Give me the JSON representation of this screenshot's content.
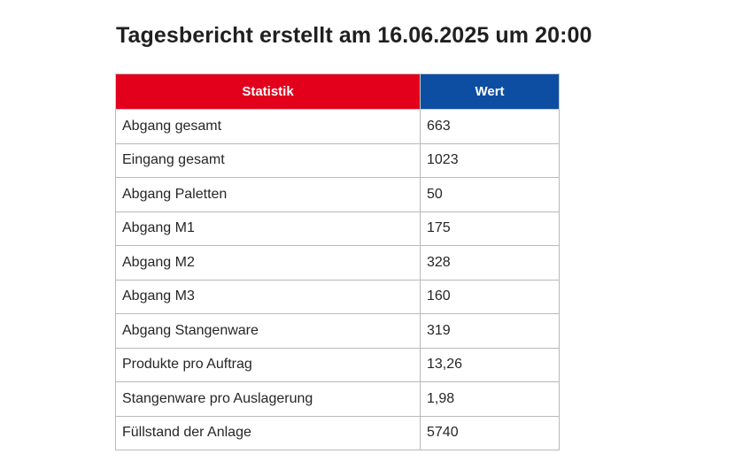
{
  "title": "Tagesbericht erstellt am 16.06.2025 um 20:00",
  "table": {
    "headers": [
      "Statistik",
      "Wert"
    ],
    "rows": [
      [
        "Abgang gesamt",
        "663"
      ],
      [
        "Eingang gesamt",
        "1023"
      ],
      [
        "Abgang Paletten",
        "50"
      ],
      [
        "Abgang M1",
        "175"
      ],
      [
        "Abgang M2",
        "328"
      ],
      [
        "Abgang M3",
        "160"
      ],
      [
        "Abgang Stangenware",
        "319"
      ],
      [
        "Produkte pro Auftrag",
        "13,26"
      ],
      [
        "Stangenware pro Auslagerung",
        "1,98"
      ],
      [
        "Füllstand der Anlage",
        "5740"
      ]
    ]
  },
  "colors": {
    "header_statistik": "#e2001a",
    "header_wert": "#0d4ea3"
  }
}
